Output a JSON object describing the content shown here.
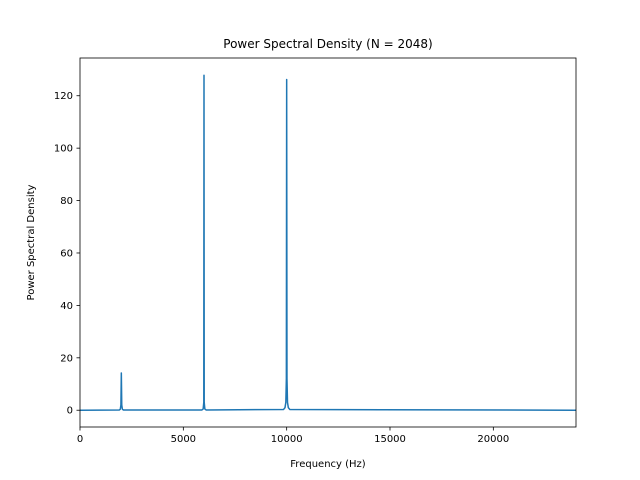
{
  "chart_data": {
    "type": "line",
    "title": "Power Spectral Density (N = 2048)",
    "xlabel": "Frequency (Hz)",
    "ylabel": "Power Spectral Density",
    "xlim": [
      0,
      24000
    ],
    "ylim": [
      -6.4,
      134.4
    ],
    "xticks": [
      0,
      5000,
      10000,
      15000,
      20000
    ],
    "yticks": [
      0,
      20,
      40,
      60,
      80,
      100,
      120
    ],
    "grid": false,
    "series_color": "#1f77b4",
    "series": [
      {
        "x": [
          0,
          1900,
          1950,
          1980,
          2000,
          2020,
          2050,
          2100,
          5900,
          5960,
          5990,
          6000,
          6010,
          6040,
          6100,
          9850,
          9920,
          9960,
          9985,
          10000,
          10015,
          10040,
          10080,
          10150,
          24000
        ],
        "y": [
          0,
          0.1,
          0.4,
          2.0,
          14.2,
          2.0,
          0.4,
          0.1,
          0.1,
          0.5,
          3.0,
          127.8,
          3.0,
          0.5,
          0.1,
          0.3,
          1.0,
          3.0,
          12.0,
          126.2,
          12.0,
          3.0,
          1.0,
          0.3,
          0
        ]
      }
    ]
  }
}
